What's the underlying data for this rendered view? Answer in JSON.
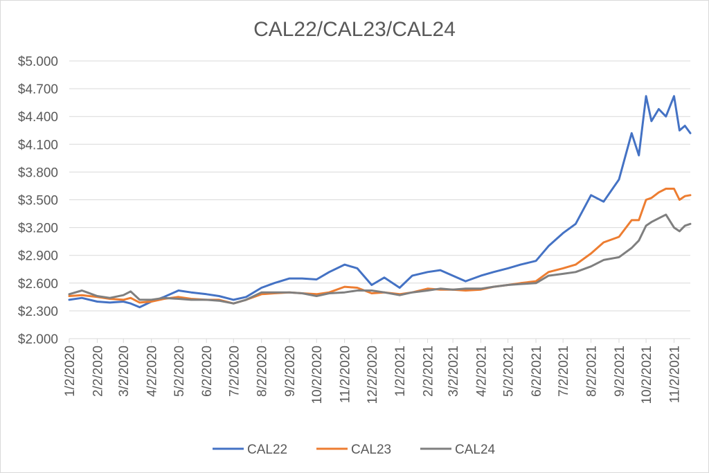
{
  "chart_data": {
    "type": "line",
    "title": "CAL22/CAL23/CAL24",
    "xlabel": "",
    "ylabel": "",
    "x_tick_labels": [
      "1/2/2020",
      "2/2/2020",
      "3/2/2020",
      "4/2/2020",
      "5/2/2020",
      "6/2/2020",
      "7/2/2020",
      "8/2/2020",
      "9/2/2020",
      "10/2/2020",
      "11/2/2020",
      "12/2/2020",
      "1/2/2021",
      "2/2/2021",
      "3/2/2021",
      "4/2/2021",
      "5/2/2021",
      "6/2/2021",
      "7/2/2021",
      "8/2/2021",
      "9/2/2021",
      "10/2/2021",
      "11/2/2021"
    ],
    "y_tick_labels": [
      "$2.000",
      "$2.300",
      "$2.600",
      "$2.900",
      "$3.200",
      "$3.500",
      "$3.800",
      "$4.100",
      "$4.400",
      "$4.700",
      "$5.000"
    ],
    "ylim": [
      2.0,
      5.0
    ],
    "xlim": [
      "2020-01-02",
      "2021-11-20"
    ],
    "grid": "horizontal",
    "legend_position": "bottom",
    "series": [
      {
        "name": "CAL22",
        "color": "#4472c4",
        "points": [
          [
            "2020-01-02",
            2.42
          ],
          [
            "2020-01-16",
            2.44
          ],
          [
            "2020-02-02",
            2.4
          ],
          [
            "2020-02-16",
            2.39
          ],
          [
            "2020-03-02",
            2.4
          ],
          [
            "2020-03-10",
            2.38
          ],
          [
            "2020-03-20",
            2.34
          ],
          [
            "2020-04-02",
            2.4
          ],
          [
            "2020-04-16",
            2.45
          ],
          [
            "2020-05-02",
            2.52
          ],
          [
            "2020-05-16",
            2.5
          ],
          [
            "2020-06-02",
            2.48
          ],
          [
            "2020-06-16",
            2.46
          ],
          [
            "2020-07-02",
            2.42
          ],
          [
            "2020-07-16",
            2.45
          ],
          [
            "2020-08-02",
            2.55
          ],
          [
            "2020-08-16",
            2.6
          ],
          [
            "2020-09-02",
            2.65
          ],
          [
            "2020-09-16",
            2.65
          ],
          [
            "2020-10-02",
            2.64
          ],
          [
            "2020-10-16",
            2.72
          ],
          [
            "2020-11-02",
            2.8
          ],
          [
            "2020-11-16",
            2.76
          ],
          [
            "2020-12-02",
            2.58
          ],
          [
            "2020-12-16",
            2.66
          ],
          [
            "2021-01-02",
            2.55
          ],
          [
            "2021-01-16",
            2.68
          ],
          [
            "2021-02-02",
            2.72
          ],
          [
            "2021-02-16",
            2.74
          ],
          [
            "2021-03-02",
            2.68
          ],
          [
            "2021-03-16",
            2.62
          ],
          [
            "2021-04-02",
            2.68
          ],
          [
            "2021-04-16",
            2.72
          ],
          [
            "2021-05-02",
            2.76
          ],
          [
            "2021-05-16",
            2.8
          ],
          [
            "2021-06-02",
            2.84
          ],
          [
            "2021-06-16",
            3.0
          ],
          [
            "2021-07-02",
            3.14
          ],
          [
            "2021-07-16",
            3.24
          ],
          [
            "2021-08-02",
            3.55
          ],
          [
            "2021-08-16",
            3.48
          ],
          [
            "2021-09-02",
            3.72
          ],
          [
            "2021-09-16",
            4.22
          ],
          [
            "2021-09-24",
            3.98
          ],
          [
            "2021-10-02",
            4.62
          ],
          [
            "2021-10-08",
            4.35
          ],
          [
            "2021-10-16",
            4.48
          ],
          [
            "2021-10-24",
            4.4
          ],
          [
            "2021-11-02",
            4.62
          ],
          [
            "2021-11-08",
            4.25
          ],
          [
            "2021-11-14",
            4.3
          ],
          [
            "2021-11-20",
            4.22
          ]
        ]
      },
      {
        "name": "CAL23",
        "color": "#ed7d31",
        "points": [
          [
            "2020-01-02",
            2.46
          ],
          [
            "2020-01-16",
            2.47
          ],
          [
            "2020-02-02",
            2.45
          ],
          [
            "2020-02-16",
            2.43
          ],
          [
            "2020-03-02",
            2.42
          ],
          [
            "2020-03-10",
            2.44
          ],
          [
            "2020-03-20",
            2.39
          ],
          [
            "2020-04-02",
            2.4
          ],
          [
            "2020-04-16",
            2.43
          ],
          [
            "2020-05-02",
            2.45
          ],
          [
            "2020-05-16",
            2.43
          ],
          [
            "2020-06-02",
            2.42
          ],
          [
            "2020-06-16",
            2.42
          ],
          [
            "2020-07-02",
            2.38
          ],
          [
            "2020-07-16",
            2.42
          ],
          [
            "2020-08-02",
            2.48
          ],
          [
            "2020-08-16",
            2.49
          ],
          [
            "2020-09-02",
            2.5
          ],
          [
            "2020-09-16",
            2.49
          ],
          [
            "2020-10-02",
            2.48
          ],
          [
            "2020-10-16",
            2.5
          ],
          [
            "2020-11-02",
            2.56
          ],
          [
            "2020-11-16",
            2.55
          ],
          [
            "2020-12-02",
            2.49
          ],
          [
            "2020-12-16",
            2.5
          ],
          [
            "2021-01-02",
            2.48
          ],
          [
            "2021-01-16",
            2.5
          ],
          [
            "2021-02-02",
            2.54
          ],
          [
            "2021-02-16",
            2.53
          ],
          [
            "2021-03-02",
            2.53
          ],
          [
            "2021-03-16",
            2.52
          ],
          [
            "2021-04-02",
            2.53
          ],
          [
            "2021-04-16",
            2.56
          ],
          [
            "2021-05-02",
            2.58
          ],
          [
            "2021-05-16",
            2.6
          ],
          [
            "2021-06-02",
            2.62
          ],
          [
            "2021-06-16",
            2.72
          ],
          [
            "2021-07-02",
            2.76
          ],
          [
            "2021-07-16",
            2.8
          ],
          [
            "2021-08-02",
            2.92
          ],
          [
            "2021-08-16",
            3.04
          ],
          [
            "2021-09-02",
            3.1
          ],
          [
            "2021-09-16",
            3.28
          ],
          [
            "2021-09-24",
            3.28
          ],
          [
            "2021-10-02",
            3.5
          ],
          [
            "2021-10-08",
            3.52
          ],
          [
            "2021-10-16",
            3.58
          ],
          [
            "2021-10-24",
            3.62
          ],
          [
            "2021-11-02",
            3.62
          ],
          [
            "2021-11-08",
            3.5
          ],
          [
            "2021-11-14",
            3.54
          ],
          [
            "2021-11-20",
            3.55
          ]
        ]
      },
      {
        "name": "CAL24",
        "color": "#7f7f7f",
        "points": [
          [
            "2020-01-02",
            2.48
          ],
          [
            "2020-01-16",
            2.52
          ],
          [
            "2020-02-02",
            2.46
          ],
          [
            "2020-02-16",
            2.44
          ],
          [
            "2020-03-02",
            2.47
          ],
          [
            "2020-03-10",
            2.51
          ],
          [
            "2020-03-20",
            2.42
          ],
          [
            "2020-04-02",
            2.42
          ],
          [
            "2020-04-16",
            2.44
          ],
          [
            "2020-05-02",
            2.43
          ],
          [
            "2020-05-16",
            2.42
          ],
          [
            "2020-06-02",
            2.42
          ],
          [
            "2020-06-16",
            2.41
          ],
          [
            "2020-07-02",
            2.38
          ],
          [
            "2020-07-16",
            2.42
          ],
          [
            "2020-08-02",
            2.5
          ],
          [
            "2020-08-16",
            2.5
          ],
          [
            "2020-09-02",
            2.5
          ],
          [
            "2020-09-16",
            2.49
          ],
          [
            "2020-10-02",
            2.46
          ],
          [
            "2020-10-16",
            2.49
          ],
          [
            "2020-11-02",
            2.5
          ],
          [
            "2020-11-16",
            2.52
          ],
          [
            "2020-12-02",
            2.52
          ],
          [
            "2020-12-16",
            2.5
          ],
          [
            "2021-01-02",
            2.47
          ],
          [
            "2021-01-16",
            2.5
          ],
          [
            "2021-02-02",
            2.52
          ],
          [
            "2021-02-16",
            2.54
          ],
          [
            "2021-03-02",
            2.53
          ],
          [
            "2021-03-16",
            2.54
          ],
          [
            "2021-04-02",
            2.54
          ],
          [
            "2021-04-16",
            2.56
          ],
          [
            "2021-05-02",
            2.58
          ],
          [
            "2021-05-16",
            2.59
          ],
          [
            "2021-06-02",
            2.6
          ],
          [
            "2021-06-16",
            2.68
          ],
          [
            "2021-07-02",
            2.7
          ],
          [
            "2021-07-16",
            2.72
          ],
          [
            "2021-08-02",
            2.78
          ],
          [
            "2021-08-16",
            2.85
          ],
          [
            "2021-09-02",
            2.88
          ],
          [
            "2021-09-16",
            2.98
          ],
          [
            "2021-09-24",
            3.06
          ],
          [
            "2021-10-02",
            3.22
          ],
          [
            "2021-10-08",
            3.26
          ],
          [
            "2021-10-16",
            3.3
          ],
          [
            "2021-10-24",
            3.34
          ],
          [
            "2021-11-02",
            3.2
          ],
          [
            "2021-11-08",
            3.16
          ],
          [
            "2021-11-14",
            3.22
          ],
          [
            "2021-11-20",
            3.24
          ]
        ]
      }
    ]
  }
}
